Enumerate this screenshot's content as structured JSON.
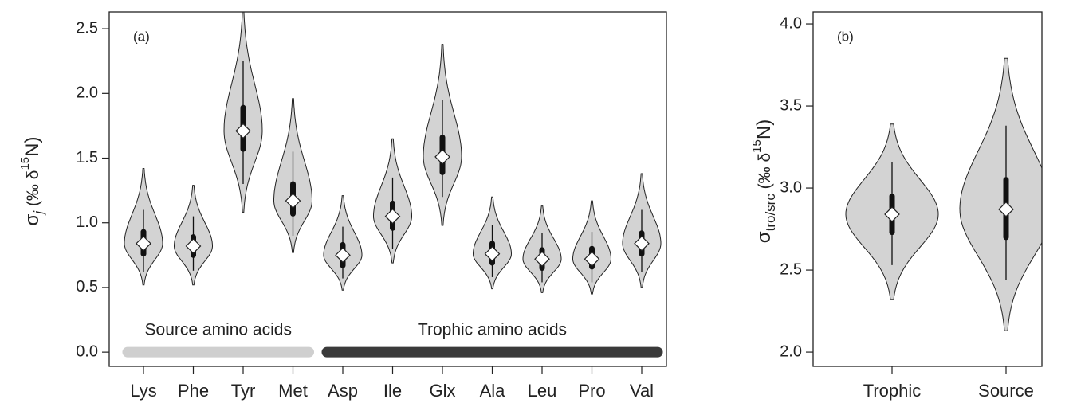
{
  "chart_data": [
    {
      "type": "violin",
      "label": "(a)",
      "ylabel_parts": [
        "σ",
        "j",
        " (‰ δ",
        "15",
        "N)"
      ],
      "categories": [
        "Lys",
        "Phe",
        "Tyr",
        "Met",
        "Asp",
        "Ile",
        "Glx",
        "Ala",
        "Leu",
        "Pro",
        "Val"
      ],
      "min": [
        0.52,
        0.52,
        1.08,
        0.77,
        0.48,
        0.69,
        0.98,
        0.49,
        0.46,
        0.45,
        0.5
      ],
      "max": [
        1.42,
        1.29,
        2.65,
        1.96,
        1.21,
        1.65,
        2.38,
        1.2,
        1.13,
        1.17,
        1.38
      ],
      "ci_low": [
        0.62,
        0.63,
        1.3,
        0.9,
        0.57,
        0.8,
        1.2,
        0.58,
        0.54,
        0.54,
        0.62
      ],
      "ci_high": [
        1.1,
        1.05,
        2.25,
        1.55,
        0.97,
        1.35,
        1.95,
        0.98,
        0.92,
        0.93,
        1.1
      ],
      "iqr_low": [
        0.76,
        0.75,
        1.57,
        1.07,
        0.67,
        0.96,
        1.39,
        0.69,
        0.65,
        0.66,
        0.76
      ],
      "iqr_high": [
        0.93,
        0.89,
        1.89,
        1.3,
        0.83,
        1.15,
        1.66,
        0.84,
        0.79,
        0.8,
        0.92
      ],
      "median": [
        0.84,
        0.82,
        1.71,
        1.17,
        0.75,
        1.05,
        1.51,
        0.76,
        0.72,
        0.72,
        0.84
      ],
      "color": "#d3d3d3",
      "groups": [
        {
          "label": "Source amino acids",
          "color": "#cfcfcf",
          "span": [
            0,
            3
          ]
        },
        {
          "label": "Trophic amino acids",
          "color": "#3a3a3a",
          "span": [
            4,
            10
          ]
        }
      ],
      "ylim": [
        -0.11,
        2.63
      ],
      "yticks": [
        {
          "value": 0,
          "label": "0.0"
        },
        0.5,
        {
          "value": 1,
          "label": "1.0"
        },
        1.5,
        {
          "value": 2,
          "label": "2.0"
        },
        2.5
      ]
    },
    {
      "type": "violin",
      "label": "(b)",
      "ylabel_parts": [
        "σ",
        "tro/src",
        " (‰ δ",
        "15",
        "N)"
      ],
      "categories": [
        "Trophic",
        "Source"
      ],
      "min": [
        2.32,
        2.13
      ],
      "max": [
        3.39,
        3.79
      ],
      "ci_low": [
        2.53,
        2.44
      ],
      "ci_high": [
        3.16,
        3.38
      ],
      "iqr_low": [
        2.73,
        2.7
      ],
      "iqr_high": [
        2.95,
        3.05
      ],
      "median": [
        2.84,
        2.87
      ],
      "color": "#d3d3d3",
      "ylim": [
        1.913,
        4.073
      ],
      "yticks": [
        {
          "value": 2,
          "label": "2.0"
        },
        2.5,
        {
          "value": 3,
          "label": "3.0"
        },
        3.5,
        {
          "value": 4,
          "label": "4.0"
        }
      ]
    }
  ]
}
